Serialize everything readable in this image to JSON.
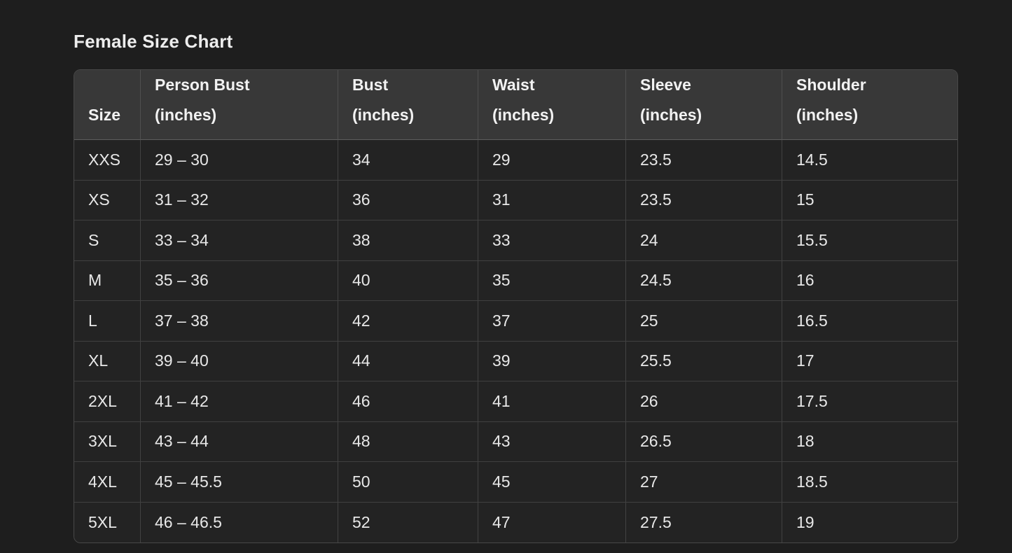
{
  "page": {
    "title": "Female Size Chart"
  },
  "colors": {
    "page_bg": "#1e1e1e",
    "header_bg": "#383838",
    "cell_bg": "#232323",
    "outer_border": "#484848",
    "cell_border": "#424242",
    "header_bottom_border": "#5e5e5e",
    "title_text": "#ededed",
    "header_text": "#f2f2f2",
    "cell_text": "#e8e8e8"
  },
  "table": {
    "columns": [
      {
        "id": "size",
        "lines": [
          "Size"
        ]
      },
      {
        "id": "person_bust",
        "lines": [
          "Person Bust",
          "(inches)"
        ]
      },
      {
        "id": "bust",
        "lines": [
          "Bust",
          "(inches)"
        ]
      },
      {
        "id": "waist",
        "lines": [
          "Waist",
          "(inches)"
        ]
      },
      {
        "id": "sleeve",
        "lines": [
          "Sleeve",
          "(inches)"
        ]
      },
      {
        "id": "shoulder",
        "lines": [
          "Shoulder",
          "(inches)"
        ]
      }
    ],
    "rows": [
      {
        "size": "XXS",
        "person_bust": "29 – 30",
        "bust": "34",
        "waist": "29",
        "sleeve": "23.5",
        "shoulder": "14.5"
      },
      {
        "size": "XS",
        "person_bust": "31 – 32",
        "bust": "36",
        "waist": "31",
        "sleeve": "23.5",
        "shoulder": "15"
      },
      {
        "size": "S",
        "person_bust": "33 – 34",
        "bust": "38",
        "waist": "33",
        "sleeve": "24",
        "shoulder": "15.5"
      },
      {
        "size": "M",
        "person_bust": "35 – 36",
        "bust": "40",
        "waist": "35",
        "sleeve": "24.5",
        "shoulder": "16"
      },
      {
        "size": "L",
        "person_bust": "37 – 38",
        "bust": "42",
        "waist": "37",
        "sleeve": "25",
        "shoulder": "16.5"
      },
      {
        "size": "XL",
        "person_bust": "39 – 40",
        "bust": "44",
        "waist": "39",
        "sleeve": "25.5",
        "shoulder": "17"
      },
      {
        "size": "2XL",
        "person_bust": "41 – 42",
        "bust": "46",
        "waist": "41",
        "sleeve": "26",
        "shoulder": "17.5"
      },
      {
        "size": "3XL",
        "person_bust": "43 – 44",
        "bust": "48",
        "waist": "43",
        "sleeve": "26.5",
        "shoulder": "18"
      },
      {
        "size": "4XL",
        "person_bust": "45 – 45.5",
        "bust": "50",
        "waist": "45",
        "sleeve": "27",
        "shoulder": "18.5"
      },
      {
        "size": "5XL",
        "person_bust": "46 – 46.5",
        "bust": "52",
        "waist": "47",
        "sleeve": "27.5",
        "shoulder": "19"
      }
    ]
  },
  "chart_data": {
    "type": "table",
    "title": "Female Size Chart",
    "columns": [
      "Size",
      "Person Bust (inches)",
      "Bust (inches)",
      "Waist (inches)",
      "Sleeve (inches)",
      "Shoulder (inches)"
    ],
    "rows": [
      [
        "XXS",
        "29 – 30",
        "34",
        "29",
        "23.5",
        "14.5"
      ],
      [
        "XS",
        "31 – 32",
        "36",
        "31",
        "23.5",
        "15"
      ],
      [
        "S",
        "33 – 34",
        "38",
        "33",
        "24",
        "15.5"
      ],
      [
        "M",
        "35 – 36",
        "40",
        "35",
        "24.5",
        "16"
      ],
      [
        "L",
        "37 – 38",
        "42",
        "37",
        "25",
        "16.5"
      ],
      [
        "XL",
        "39 – 40",
        "44",
        "39",
        "25.5",
        "17"
      ],
      [
        "2XL",
        "41 – 42",
        "46",
        "41",
        "26",
        "17.5"
      ],
      [
        "3XL",
        "43 – 44",
        "48",
        "43",
        "26.5",
        "18"
      ],
      [
        "4XL",
        "45 – 45.5",
        "50",
        "45",
        "27",
        "18.5"
      ],
      [
        "5XL",
        "46 – 46.5",
        "52",
        "47",
        "27.5",
        "19"
      ]
    ]
  }
}
